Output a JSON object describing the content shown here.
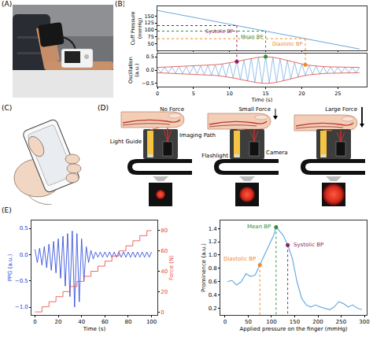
{
  "panels": {
    "A": {
      "label": "(A)"
    },
    "B": {
      "label": "(B)"
    },
    "C": {
      "label": "(C)"
    },
    "D": {
      "label": "(D)",
      "force_labels": [
        "No Force",
        "Small Force",
        "Large Force"
      ],
      "parts": {
        "light_guide": "Light Guide",
        "imaging_path": "Imaging Path",
        "flashlight": "Flashlight",
        "camera": "Camera"
      }
    },
    "E": {
      "label": "(E)"
    }
  },
  "chart_data": [
    {
      "type": "line",
      "y_label": "Cuff Pressure (mmHg)",
      "x": [
        0,
        28
      ],
      "series": [
        {
          "color": "#6fa8dc",
          "values": [
            170,
            30
          ]
        }
      ],
      "xlim": [
        0,
        29
      ],
      "ylim": [
        25,
        185
      ],
      "xticks": [
        0,
        5,
        10,
        15,
        20,
        25
      ],
      "yticks": [
        50,
        75,
        100,
        125,
        150
      ],
      "tick_labels": "y",
      "grid": false,
      "bp_points": [
        {
          "text": "Systolic BP",
          "x": 11,
          "y": 115,
          "color": "#8e1f5e"
        },
        {
          "text": "Mean BP",
          "x": 15,
          "y": 95,
          "color": "#2f8f3a"
        },
        {
          "text": "Diastolic BP",
          "x": 20.5,
          "y": 67.5,
          "color": "#f0891f"
        }
      ]
    },
    {
      "type": "line",
      "x_label": "Time (s)",
      "y_label": "Oscillation (a.u.)",
      "marker": "circle",
      "x": [
        0,
        0.5,
        1,
        1.5,
        2,
        2.5,
        3,
        3.5,
        4,
        4.5,
        5,
        5.5,
        6,
        6.5,
        7,
        7.5,
        8,
        8.5,
        9,
        9.5,
        10,
        10.5,
        11,
        11.5,
        12,
        12.5,
        13,
        13.5,
        14,
        14.5,
        15,
        15.5,
        16,
        16.5,
        17,
        17.5,
        18,
        18.5,
        19,
        19.5,
        20,
        20.5,
        21,
        21.5,
        22,
        22.5,
        23,
        23.5,
        24,
        24.5,
        25,
        25.5,
        26,
        26.5,
        27,
        27.5,
        28
      ],
      "series": [
        {
          "color": "#7fb3e6",
          "values": [
            0.1,
            -0.1,
            0.11,
            -0.11,
            0.12,
            -0.12,
            0.13,
            -0.13,
            0.14,
            -0.14,
            0.15,
            -0.15,
            0.16,
            -0.17,
            0.18,
            -0.19,
            0.2,
            -0.21,
            0.23,
            -0.25,
            0.27,
            -0.29,
            0.32,
            -0.35,
            0.38,
            -0.41,
            0.44,
            -0.46,
            0.48,
            -0.49,
            0.5,
            -0.49,
            0.48,
            -0.45,
            0.43,
            -0.4,
            0.36,
            -0.33,
            0.29,
            -0.26,
            0.23,
            -0.2,
            0.18,
            -0.16,
            0.15,
            -0.14,
            0.13,
            -0.12,
            0.12,
            -0.11,
            0.11,
            -0.1,
            0.1,
            -0.1,
            0.1,
            -0.1,
            0.1
          ]
        },
        {
          "color": "#e0443a",
          "x": [
            0,
            1,
            2,
            3,
            4,
            5,
            6,
            7,
            8,
            9,
            10,
            11,
            12,
            13,
            14,
            15,
            16,
            17,
            18,
            19,
            20,
            21,
            22,
            23,
            24,
            25,
            26,
            27,
            28
          ],
          "values": [
            0.1,
            0.11,
            0.12,
            0.13,
            0.14,
            0.15,
            0.16,
            0.18,
            0.2,
            0.23,
            0.27,
            0.32,
            0.38,
            0.44,
            0.48,
            0.5,
            0.48,
            0.43,
            0.36,
            0.29,
            0.23,
            0.18,
            0.15,
            0.13,
            0.12,
            0.11,
            0.1,
            0.1,
            0.1
          ]
        },
        {
          "color": "#e0443a",
          "x": [
            0,
            1,
            2,
            3,
            4,
            5,
            6,
            7,
            8,
            9,
            10,
            11,
            12,
            13,
            14,
            15,
            16,
            17,
            18,
            19,
            20,
            21,
            22,
            23,
            24,
            25,
            26,
            27,
            28
          ],
          "values": [
            -0.1,
            -0.11,
            -0.12,
            -0.13,
            -0.14,
            -0.15,
            -0.16,
            -0.18,
            -0.2,
            -0.23,
            -0.27,
            -0.32,
            -0.38,
            -0.44,
            -0.48,
            -0.5,
            -0.48,
            -0.43,
            -0.36,
            -0.29,
            -0.23,
            -0.18,
            -0.15,
            -0.13,
            -0.12,
            -0.11,
            -0.1,
            -0.1,
            -0.1
          ]
        }
      ],
      "xlim": [
        0,
        29
      ],
      "ylim": [
        -0.62,
        0.62
      ],
      "xticks": [
        0,
        5,
        10,
        15,
        20,
        25
      ],
      "yticks": [
        {
          "value": -0.5,
          "label": "−0.5"
        },
        {
          "value": 0,
          "label": "0.0"
        },
        {
          "value": 0.5,
          "label": "0.5"
        }
      ],
      "grid": false,
      "bp_points": [
        {
          "x": 11,
          "y": 0.32,
          "color": "#8e1f5e"
        },
        {
          "x": 15,
          "y": 0.5,
          "color": "#2f8f3a"
        },
        {
          "x": 20.5,
          "y": 0.2,
          "color": "#f0891f"
        }
      ]
    },
    {
      "type": "line",
      "x_label": "Time (s)",
      "y_label": "PPG (a.u.)",
      "y2_label": "Force (N)",
      "x": [
        0,
        2,
        4,
        6,
        8,
        10,
        12,
        14,
        16,
        18,
        20,
        22,
        24,
        26,
        28,
        30,
        32,
        34,
        36,
        38,
        40,
        42,
        44,
        46,
        48,
        50,
        52,
        54,
        56,
        58,
        60,
        62,
        64,
        66,
        68,
        70,
        72,
        74,
        76,
        78,
        80,
        82,
        84,
        86,
        88,
        90,
        92,
        94,
        96,
        98,
        100
      ],
      "series": [
        {
          "color": "#2340d8",
          "values": [
            0.1,
            -0.15,
            0.12,
            -0.2,
            0.15,
            -0.25,
            0.2,
            -0.3,
            0.25,
            -0.35,
            0.3,
            -0.45,
            0.35,
            -0.6,
            0.4,
            -0.8,
            0.45,
            -1.0,
            0.4,
            -0.9,
            0.3,
            -0.5,
            0.15,
            -0.15,
            0.08,
            -0.08,
            0.05,
            -0.05,
            0.05,
            -0.05,
            0.05,
            -0.05,
            0.05,
            -0.05,
            0.05,
            -0.05,
            0.05,
            -0.05,
            0.05,
            -0.05,
            0.05,
            -0.05,
            0.05,
            -0.05,
            0.05,
            -0.05,
            0.05,
            -0.05,
            0.05,
            -0.05,
            0.05
          ]
        },
        {
          "color": "#e8453c",
          "axis": "y2",
          "line_style": "step",
          "x": [
            0,
            6,
            12,
            18,
            24,
            30,
            36,
            42,
            48,
            54,
            60,
            66,
            72,
            78,
            84,
            90,
            96,
            100
          ],
          "values": [
            0,
            5,
            10,
            15,
            20,
            25,
            30,
            35,
            40,
            45,
            50,
            55,
            60,
            65,
            70,
            75,
            80,
            80
          ]
        }
      ],
      "xlim": [
        -3,
        105
      ],
      "ylim": [
        -1.15,
        0.65
      ],
      "y2lim": [
        -3,
        90
      ],
      "xticks": [
        0,
        20,
        40,
        60,
        80,
        100
      ],
      "yticks": [
        {
          "value": -1,
          "label": "−1.0"
        },
        {
          "value": -0.5,
          "label": "−0.5"
        },
        {
          "value": 0,
          "label": "0.0"
        },
        {
          "value": 0.5,
          "label": "0.5"
        }
      ],
      "y2ticks": [
        0,
        20,
        40,
        60,
        80
      ],
      "grid": false
    },
    {
      "type": "line",
      "x_label": "Applied pressure on the finger (mmHg)",
      "y_label": "Prominence (a.u.)",
      "marker": "circle",
      "x": [
        5,
        15,
        25,
        35,
        45,
        55,
        65,
        75,
        85,
        95,
        105,
        110,
        115,
        125,
        135,
        145,
        155,
        165,
        175,
        185,
        195,
        205,
        215,
        225,
        235,
        245,
        255,
        265,
        275,
        285,
        295
      ],
      "series": [
        {
          "color": "#6aaee0",
          "values": [
            0.6,
            0.62,
            0.55,
            0.6,
            0.72,
            0.68,
            0.7,
            0.85,
            1.0,
            1.15,
            1.3,
            1.42,
            1.38,
            1.3,
            1.15,
            0.95,
            0.6,
            0.35,
            0.25,
            0.22,
            0.25,
            0.22,
            0.2,
            0.18,
            0.22,
            0.3,
            0.27,
            0.22,
            0.25,
            0.2,
            0.18
          ]
        }
      ],
      "xlim": [
        -10,
        305
      ],
      "ylim": [
        0.1,
        1.52
      ],
      "xticks": [
        0,
        50,
        100,
        150,
        200,
        250,
        300
      ],
      "yticks": [
        0.2,
        0.4,
        0.6,
        0.8,
        {
          "value": 1,
          "label": "1.0"
        },
        1.2,
        1.4
      ],
      "grid": false,
      "bp_points": [
        {
          "text": "Diastolic BP",
          "x": 75,
          "y": 0.85,
          "color": "#f0891f"
        },
        {
          "text": "Mean BP",
          "x": 110,
          "y": 1.42,
          "color": "#2f8f3a"
        },
        {
          "text": "Systolic BP",
          "x": 135,
          "y": 1.15,
          "color": "#8e1f5e"
        }
      ]
    }
  ]
}
